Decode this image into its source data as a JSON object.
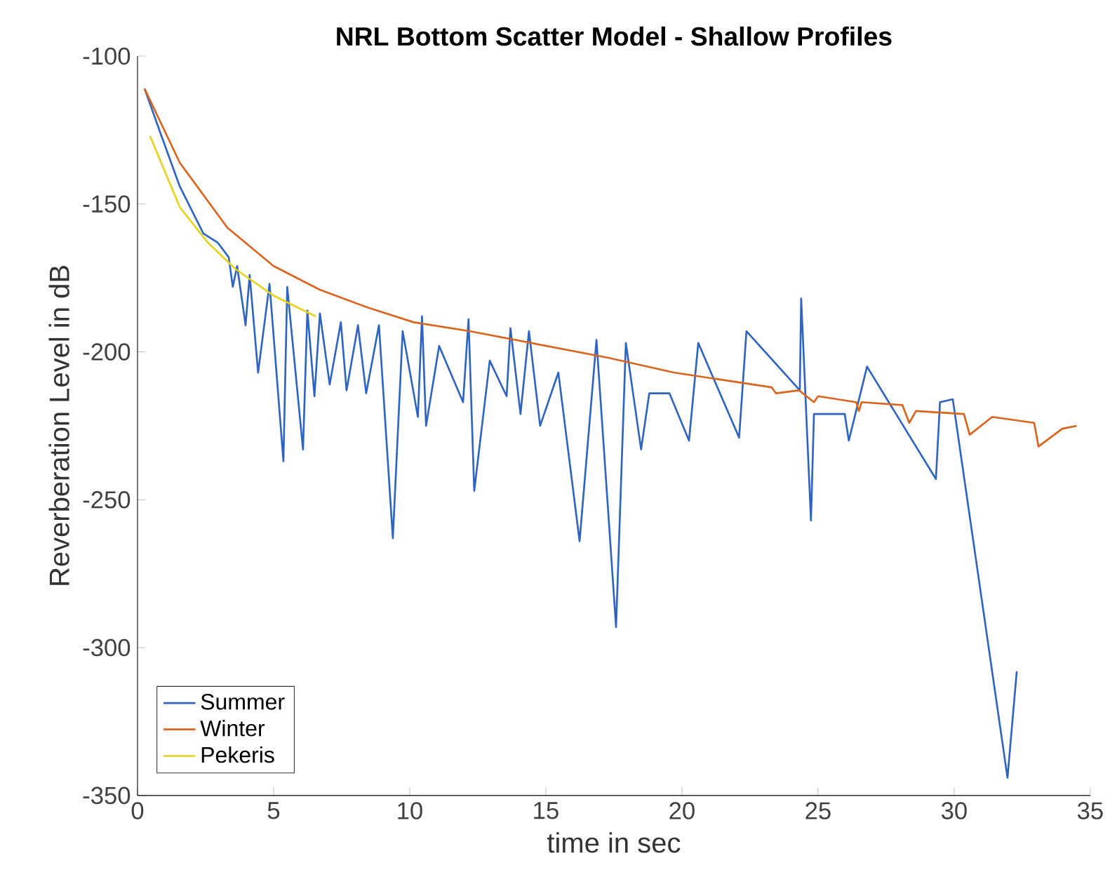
{
  "chart_data": {
    "type": "line",
    "title": "**NRL Bottom Scatter Model - Shallow Profiles**",
    "xlabel": "time in sec",
    "ylabel": "Reverberation Level in dB",
    "xlim": [
      0,
      35
    ],
    "ylim": [
      -350,
      -100
    ],
    "xticks": [
      0,
      5,
      10,
      15,
      20,
      25,
      30,
      35
    ],
    "yticks": [
      -350,
      -300,
      -250,
      -200,
      -150,
      -100
    ],
    "grid": false,
    "legend": "bottom left",
    "marker": "none",
    "line_style": "solid",
    "series": [
      {
        "name": "Summer",
        "color": "#2f65c0",
        "x": [
          0.26,
          0.88,
          1.55,
          2.42,
          2.94,
          3.35,
          3.5,
          3.66,
          3.97,
          4.12,
          4.43,
          4.85,
          5.36,
          5.5,
          6.08,
          6.24,
          6.5,
          6.7,
          7.06,
          7.47,
          7.68,
          8.1,
          8.4,
          8.87,
          9.38,
          9.74,
          10.3,
          10.45,
          10.6,
          11.08,
          11.96,
          12.16,
          12.37,
          12.94,
          13.56,
          13.7,
          14.07,
          14.38,
          14.79,
          15.46,
          16.24,
          16.86,
          17.58,
          17.94,
          18.5,
          18.8,
          19.54,
          20.26,
          20.6,
          22.1,
          22.37,
          24.33,
          24.38,
          24.74,
          24.85,
          25.98,
          26.13,
          26.8,
          29.33,
          29.48,
          29.95,
          31.96,
          32.3
        ],
        "values": [
          -111,
          -127,
          -144,
          -160,
          -163,
          -168,
          -178,
          -171,
          -191,
          -174,
          -207,
          -177,
          -237,
          -178,
          -233,
          -186,
          -215,
          -187,
          -211,
          -190,
          -213,
          -191,
          -214,
          -191,
          -263,
          -193,
          -222,
          -188,
          -225,
          -198,
          -217,
          -189,
          -247,
          -203,
          -215,
          -192,
          -221,
          -193,
          -225,
          -207,
          -264,
          -196,
          -293,
          -197,
          -233,
          -214,
          -214,
          -230,
          -197,
          -229,
          -193,
          -213,
          -182,
          -257,
          -221,
          -221,
          -230,
          -205,
          -243,
          -217,
          -216,
          -344,
          -308
        ]
      },
      {
        "name": "Winter",
        "color": "#d9641e",
        "x": [
          0.26,
          1.55,
          3.3,
          5.0,
          6.7,
          8.45,
          10.15,
          12.2,
          17.3,
          19.7,
          23.3,
          23.45,
          24.3,
          24.85,
          25.0,
          26.4,
          26.5,
          26.6,
          28.1,
          28.35,
          28.6,
          30.36,
          30.57,
          31.4,
          32.94,
          33.1,
          33.97,
          34.5
        ],
        "values": [
          -111,
          -136,
          -158,
          -171,
          -179,
          -185,
          -190,
          -193,
          -202,
          -207,
          -212,
          -214,
          -213,
          -217,
          -215,
          -217,
          -220,
          -217,
          -218,
          -224,
          -220,
          -221,
          -228,
          -222,
          -224,
          -232,
          -226,
          -225
        ]
      },
      {
        "name": "Pekeris",
        "color": "#e6d21e",
        "x": [
          0.46,
          1.55,
          2.58,
          3.6,
          5.0,
          6.55
        ],
        "values": [
          -127,
          -151,
          -163,
          -172,
          -181,
          -188
        ]
      }
    ]
  }
}
